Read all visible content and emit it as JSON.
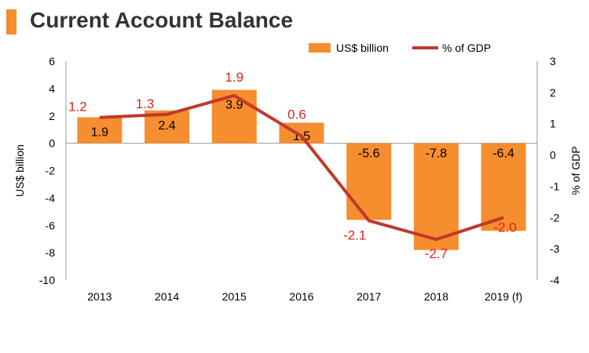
{
  "title": "Current Account Balance",
  "colors": {
    "accent": "#F68D2E",
    "bar": "#F68D2E",
    "line": "#C0392B",
    "line_label": "#E2231A",
    "title_text": "#333333",
    "axis": "#999999"
  },
  "chart_data": {
    "type": "bar",
    "title": "Current Account Balance",
    "categories": [
      "2013",
      "2014",
      "2015",
      "2016",
      "2017",
      "2018",
      "2019 (f)"
    ],
    "series": [
      {
        "name": "US$ billion",
        "type": "bar",
        "axis": "left",
        "values": [
          1.9,
          2.4,
          3.9,
          1.5,
          -5.6,
          -7.8,
          -6.4
        ]
      },
      {
        "name": "% of GDP",
        "type": "line",
        "axis": "right",
        "values": [
          1.2,
          1.3,
          1.9,
          0.6,
          -2.1,
          -2.7,
          -2.0
        ]
      }
    ],
    "bar_value_labels": [
      "1.9",
      "2.4",
      "3.9",
      "1.5",
      "-5.6",
      "-7.8",
      "-6.4"
    ],
    "line_value_labels": [
      "1.2",
      "1.3",
      "1.9",
      "0.6",
      "-2.1",
      "-2.7",
      "-2.0"
    ],
    "ylabel": "US$ billion",
    "y2label": "% of GDP",
    "ylim": [
      -10,
      6
    ],
    "y2lim": [
      -4,
      3
    ],
    "yticks": [
      "6",
      "4",
      "2",
      "0",
      "-2",
      "-4",
      "-6",
      "-8",
      "-10"
    ],
    "y2ticks": [
      "3",
      "2",
      "1",
      "0",
      "-1",
      "-2",
      "-3",
      "-4"
    ],
    "legend_position": "top-right",
    "grid": false
  }
}
